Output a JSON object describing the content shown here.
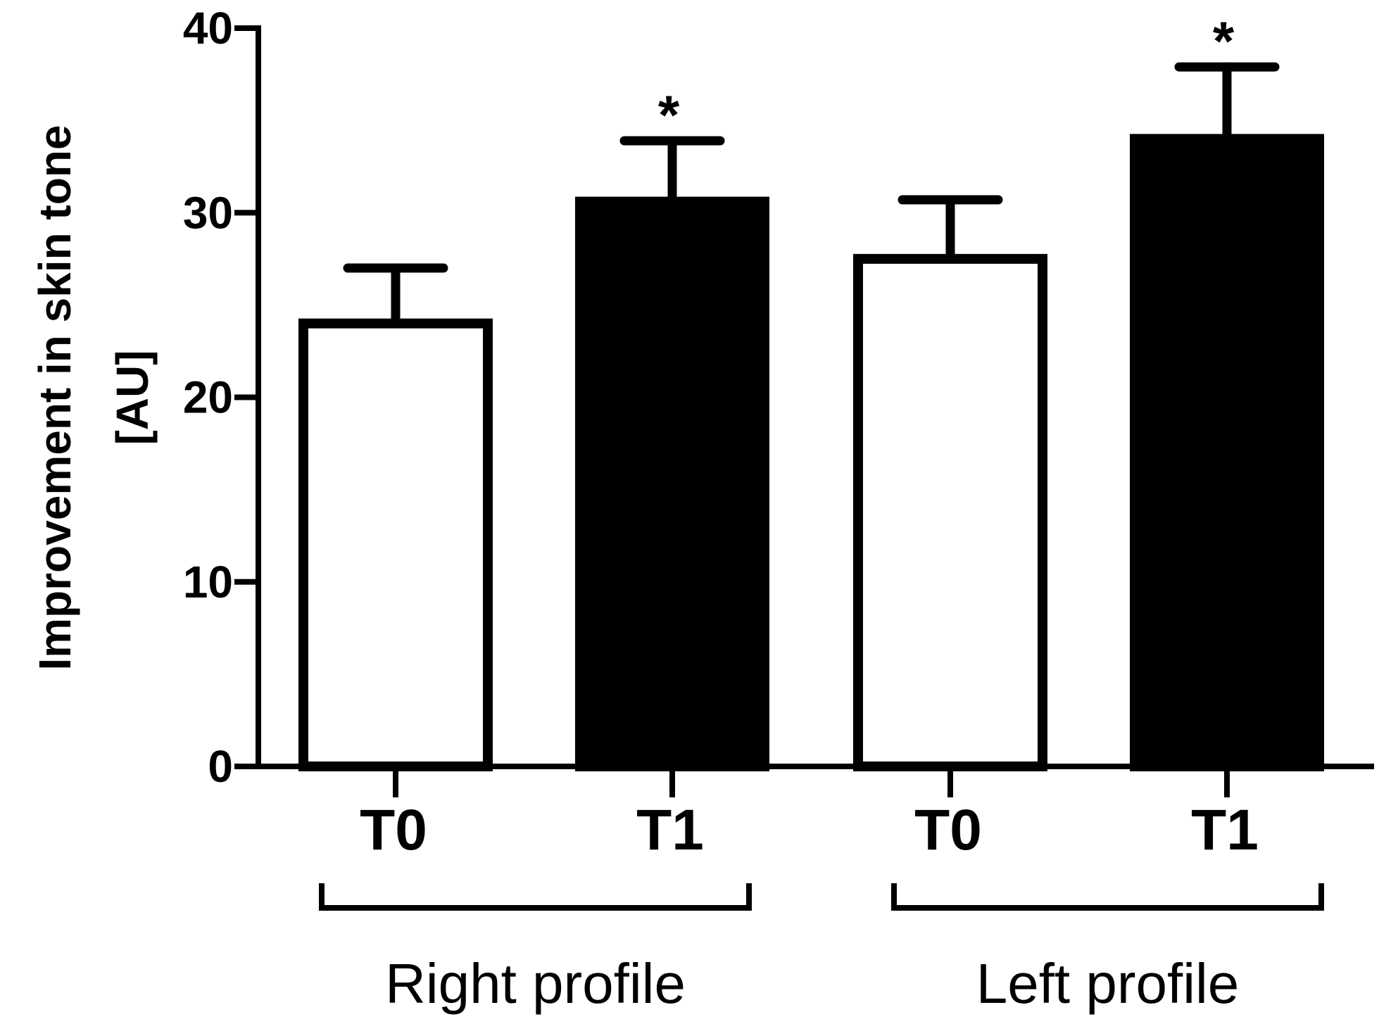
{
  "chart_data": {
    "type": "bar",
    "title": "",
    "xlabel": "",
    "ylabel_lines": [
      "Improvement in skin tone",
      "[AU]"
    ],
    "ylim": [
      0,
      40
    ],
    "yticks": [
      "0",
      "10",
      "20",
      "30",
      "40"
    ],
    "yticks_values": [
      0,
      10,
      20,
      30,
      40
    ],
    "categories": [
      "T0",
      "T1",
      "T0",
      "T1"
    ],
    "bars": [
      {
        "label": "T0",
        "group": "Right profile",
        "value": 24,
        "error": 3,
        "fill": "#ffffff",
        "significance": ""
      },
      {
        "label": "T1",
        "group": "Right profile",
        "value": 30.6,
        "error": 3.3,
        "fill": "#000000",
        "significance": "*"
      },
      {
        "label": "T0",
        "group": "Left profile",
        "value": 27.5,
        "error": 3.2,
        "fill": "#ffffff",
        "significance": ""
      },
      {
        "label": "T1",
        "group": "Left profile",
        "value": 34,
        "error": 3.9,
        "fill": "#000000",
        "significance": "*"
      }
    ],
    "groups": [
      {
        "label": "Right profile",
        "bars": [
          0,
          1
        ]
      },
      {
        "label": "Left profile",
        "bars": [
          2,
          3
        ]
      }
    ],
    "grid": false,
    "legend": "none"
  }
}
